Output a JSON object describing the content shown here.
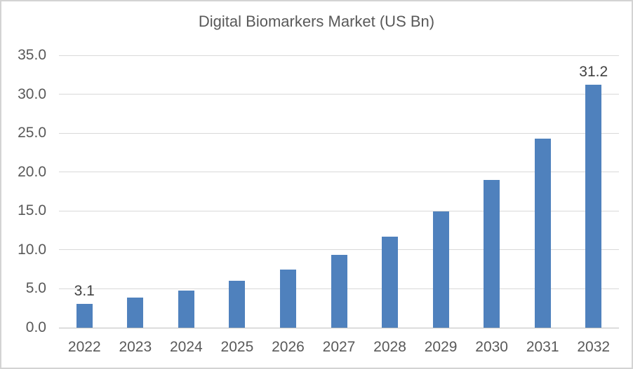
{
  "chart_data": {
    "type": "bar",
    "title": "Digital Biomarkers Market (US Bn)",
    "categories": [
      "2022",
      "2023",
      "2024",
      "2025",
      "2026",
      "2027",
      "2028",
      "2029",
      "2030",
      "2031",
      "2032"
    ],
    "values": [
      3.1,
      3.9,
      4.8,
      6.0,
      7.5,
      9.4,
      11.7,
      14.9,
      19.0,
      24.3,
      31.2
    ],
    "xlabel": "",
    "ylabel": "",
    "ylim": [
      0,
      35
    ],
    "ytick_step": 5,
    "ytick_labels": [
      "0.0",
      "5.0",
      "10.0",
      "15.0",
      "20.0",
      "25.0",
      "30.0",
      "35.0"
    ],
    "grid": true,
    "legend_position": "none",
    "data_labels": [
      {
        "index": 0,
        "text": "3.1"
      },
      {
        "index": 10,
        "text": "31.2"
      }
    ],
    "colors": {
      "bar": "#4F81BD",
      "gridline": "#D9D9D9",
      "axis_line": "#BFBFBF",
      "tick_text": "#595959",
      "title_text": "#595959",
      "data_label_text": "#404040",
      "frame_border": "#D3D3D3",
      "background": "#FFFFFF"
    }
  }
}
